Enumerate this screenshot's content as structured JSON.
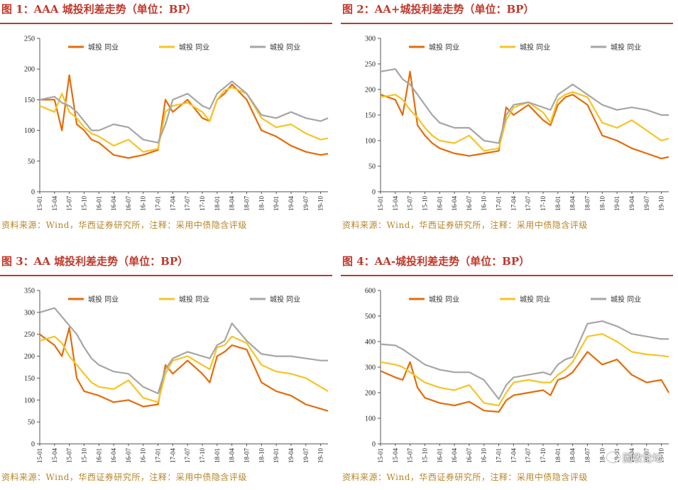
{
  "colors": {
    "title": "#c0392b",
    "source": "#b7862a",
    "series": [
      "#e46c0a",
      "#f7c325",
      "#a6a6a6"
    ]
  },
  "source_note": "资料来源：Wind，华西证券研究所，注释：采用中债隐含评级",
  "watermark": "固收论坛",
  "chart_data": [
    {
      "type": "line",
      "title": "图 1：AAA 城投利差走势（单位：BP）",
      "x_ticks": [
        "15-01",
        "15-04",
        "15-07",
        "15-10",
        "16-01",
        "16-04",
        "16-07",
        "16-10",
        "17-01",
        "17-04",
        "17-07",
        "17-10",
        "18-01",
        "18-04",
        "18-07",
        "18-10",
        "19-01",
        "19-04",
        "19-07",
        "19-10"
      ],
      "ylim": [
        0,
        250
      ],
      "yticks": [
        0,
        50,
        100,
        150,
        200,
        250
      ],
      "legend": [
        "城投",
        "同业",
        "城投",
        "同业",
        "城投",
        "同业"
      ],
      "series": [
        {
          "x": [
            0,
            1,
            1.5,
            2,
            2.5,
            3,
            3.5,
            4,
            5,
            6,
            7,
            8,
            8.5,
            9,
            10,
            11,
            11.5,
            12,
            12.5,
            13,
            14,
            15,
            16,
            17,
            18,
            19,
            19.5
          ],
          "y": [
            150,
            150,
            100,
            190,
            110,
            100,
            85,
            80,
            60,
            55,
            60,
            68,
            150,
            130,
            150,
            120,
            115,
            150,
            160,
            175,
            150,
            100,
            90,
            75,
            65,
            60,
            62
          ]
        },
        {
          "x": [
            0,
            1,
            1.5,
            2,
            2.5,
            3,
            3.5,
            4,
            5,
            6,
            7,
            8,
            8.5,
            9,
            10,
            11,
            11.5,
            12,
            12.5,
            13,
            14,
            15,
            16,
            17,
            18,
            19,
            19.5
          ],
          "y": [
            140,
            130,
            160,
            130,
            120,
            105,
            95,
            90,
            75,
            85,
            65,
            70,
            130,
            140,
            145,
            130,
            115,
            150,
            165,
            170,
            160,
            120,
            105,
            110,
            95,
            85,
            87
          ]
        },
        {
          "x": [
            0,
            1,
            1.5,
            2,
            2.5,
            3,
            3.5,
            4,
            5,
            6,
            7,
            8,
            8.5,
            9,
            10,
            11,
            11.5,
            12,
            12.5,
            13,
            14,
            15,
            16,
            17,
            18,
            19,
            19.5
          ],
          "y": [
            150,
            155,
            145,
            140,
            130,
            115,
            100,
            100,
            110,
            105,
            85,
            80,
            110,
            150,
            160,
            140,
            135,
            160,
            170,
            180,
            160,
            125,
            120,
            130,
            120,
            115,
            120
          ]
        }
      ]
    },
    {
      "type": "line",
      "title": "图 2：AA+城投利差走势（单位：BP）",
      "x_ticks": [
        "15-01",
        "15-04",
        "15-07",
        "15-10",
        "16-01",
        "16-04",
        "16-07",
        "16-10",
        "17-01",
        "17-04",
        "17-07",
        "17-10",
        "18-01",
        "18-04",
        "18-07",
        "18-10",
        "19-01",
        "19-04",
        "19-07",
        "19-10"
      ],
      "ylim": [
        0,
        300
      ],
      "yticks": [
        0,
        50,
        100,
        150,
        200,
        250,
        300
      ],
      "legend": [
        "城投",
        "同业",
        "城投",
        "同业",
        "城投",
        "同业"
      ],
      "series": [
        {
          "x": [
            0,
            1,
            1.5,
            2,
            2.5,
            3,
            3.5,
            4,
            5,
            6,
            7,
            8,
            8.5,
            9,
            10,
            11,
            11.5,
            12,
            12.5,
            13,
            14,
            15,
            16,
            17,
            18,
            19,
            19.5
          ],
          "y": [
            190,
            180,
            150,
            235,
            130,
            110,
            95,
            85,
            75,
            70,
            75,
            80,
            165,
            150,
            170,
            140,
            130,
            170,
            185,
            190,
            170,
            110,
            100,
            85,
            75,
            65,
            68
          ]
        },
        {
          "x": [
            0,
            1,
            1.5,
            2,
            2.5,
            3,
            3.5,
            4,
            5,
            6,
            7,
            8,
            8.5,
            9,
            10,
            11,
            11.5,
            12,
            12.5,
            13,
            14,
            15,
            16,
            17,
            18,
            19,
            19.5
          ],
          "y": [
            185,
            190,
            180,
            160,
            145,
            125,
            110,
            100,
            95,
            110,
            80,
            85,
            140,
            165,
            175,
            155,
            135,
            180,
            190,
            195,
            185,
            135,
            125,
            140,
            120,
            100,
            104
          ]
        },
        {
          "x": [
            0,
            1,
            1.5,
            2,
            2.5,
            3,
            3.5,
            4,
            5,
            6,
            7,
            8,
            8.5,
            9,
            10,
            11,
            11.5,
            12,
            12.5,
            13,
            14,
            15,
            16,
            17,
            18,
            19,
            19.5
          ],
          "y": [
            235,
            240,
            220,
            210,
            190,
            170,
            150,
            135,
            125,
            125,
            100,
            95,
            150,
            170,
            175,
            165,
            160,
            190,
            200,
            210,
            190,
            170,
            160,
            165,
            160,
            150,
            150
          ]
        }
      ]
    },
    {
      "type": "line",
      "title": "图 3：AA 城投利差走势（单位：BP）",
      "x_ticks": [
        "15-01",
        "15-04",
        "15-07",
        "15-10",
        "16-01",
        "16-04",
        "16-07",
        "16-10",
        "17-01",
        "17-04",
        "17-07",
        "17-10",
        "18-01",
        "18-04",
        "18-07",
        "18-10",
        "19-01",
        "19-04",
        "19-07",
        "19-10"
      ],
      "ylim": [
        0,
        350
      ],
      "yticks": [
        0,
        50,
        100,
        150,
        200,
        250,
        300,
        350
      ],
      "legend": [
        "城投",
        "同业",
        "城投",
        "同业",
        "城投",
        "同业"
      ],
      "series": [
        {
          "x": [
            0,
            1,
            1.5,
            2,
            2.5,
            3,
            3.5,
            4,
            5,
            6,
            7,
            8,
            8.5,
            9,
            10,
            11,
            11.5,
            12,
            12.5,
            13,
            14,
            15,
            16,
            17,
            18,
            19,
            19.5
          ],
          "y": [
            250,
            225,
            200,
            265,
            150,
            120,
            115,
            110,
            95,
            100,
            85,
            90,
            180,
            160,
            190,
            160,
            140,
            200,
            210,
            225,
            215,
            140,
            120,
            110,
            90,
            80,
            75
          ]
        },
        {
          "x": [
            0,
            1,
            1.5,
            2,
            2.5,
            3,
            3.5,
            4,
            5,
            6,
            7,
            8,
            8.5,
            9,
            10,
            11,
            11.5,
            12,
            12.5,
            13,
            14,
            15,
            16,
            17,
            18,
            19,
            19.5
          ],
          "y": [
            235,
            245,
            230,
            200,
            180,
            160,
            140,
            130,
            125,
            145,
            105,
            95,
            160,
            190,
            200,
            180,
            170,
            220,
            225,
            245,
            230,
            180,
            165,
            160,
            150,
            130,
            120
          ]
        },
        {
          "x": [
            0,
            1,
            1.5,
            2,
            2.5,
            3,
            3.5,
            4,
            5,
            6,
            7,
            8,
            8.5,
            9,
            10,
            11,
            11.5,
            12,
            12.5,
            13,
            14,
            15,
            16,
            17,
            18,
            19,
            19.5
          ],
          "y": [
            300,
            310,
            290,
            270,
            250,
            220,
            195,
            180,
            165,
            160,
            130,
            115,
            170,
            195,
            210,
            200,
            195,
            225,
            235,
            275,
            235,
            205,
            200,
            200,
            195,
            190,
            190
          ]
        }
      ]
    },
    {
      "type": "line",
      "title": "图 4：AA-城投利差走势（单位：BP）",
      "x_ticks": [
        "15-01",
        "15-04",
        "15-07",
        "15-10",
        "16-01",
        "16-04",
        "16-07",
        "16-10",
        "17-01",
        "17-04",
        "17-07",
        "17-10",
        "18-01",
        "18-04",
        "18-07",
        "18-10",
        "19-01",
        "19-04",
        "19-07",
        "19-10"
      ],
      "ylim": [
        0,
        600
      ],
      "yticks": [
        0,
        100,
        200,
        300,
        400,
        500,
        600
      ],
      "legend": [
        "城投",
        "同业",
        "城投",
        "同业",
        "城投",
        "同业"
      ],
      "series": [
        {
          "x": [
            0,
            1,
            1.5,
            2,
            2.5,
            3,
            3.5,
            4,
            5,
            6,
            7,
            8,
            8.5,
            9,
            10,
            11,
            11.5,
            12,
            12.5,
            13,
            14,
            15,
            16,
            17,
            18,
            19,
            19.5
          ],
          "y": [
            285,
            260,
            250,
            320,
            220,
            180,
            170,
            160,
            150,
            165,
            130,
            125,
            170,
            190,
            200,
            210,
            190,
            250,
            260,
            280,
            360,
            310,
            330,
            270,
            240,
            250,
            200
          ]
        },
        {
          "x": [
            0,
            1,
            1.5,
            2,
            2.5,
            3,
            3.5,
            4,
            5,
            6,
            7,
            8,
            8.5,
            9,
            10,
            11,
            11.5,
            12,
            12.5,
            13,
            14,
            15,
            16,
            17,
            18,
            19,
            19.5
          ],
          "y": [
            320,
            310,
            300,
            280,
            260,
            240,
            230,
            220,
            210,
            230,
            160,
            150,
            200,
            240,
            250,
            240,
            240,
            270,
            290,
            320,
            420,
            430,
            400,
            360,
            350,
            345,
            340
          ]
        },
        {
          "x": [
            0,
            1,
            1.5,
            2,
            2.5,
            3,
            3.5,
            4,
            5,
            6,
            7,
            8,
            8.5,
            9,
            10,
            11,
            11.5,
            12,
            12.5,
            13,
            14,
            15,
            16,
            17,
            18,
            19,
            19.5
          ],
          "y": [
            390,
            385,
            370,
            350,
            330,
            310,
            300,
            290,
            280,
            280,
            250,
            175,
            230,
            260,
            270,
            280,
            270,
            310,
            330,
            340,
            470,
            480,
            460,
            430,
            420,
            410,
            410
          ]
        }
      ]
    }
  ]
}
